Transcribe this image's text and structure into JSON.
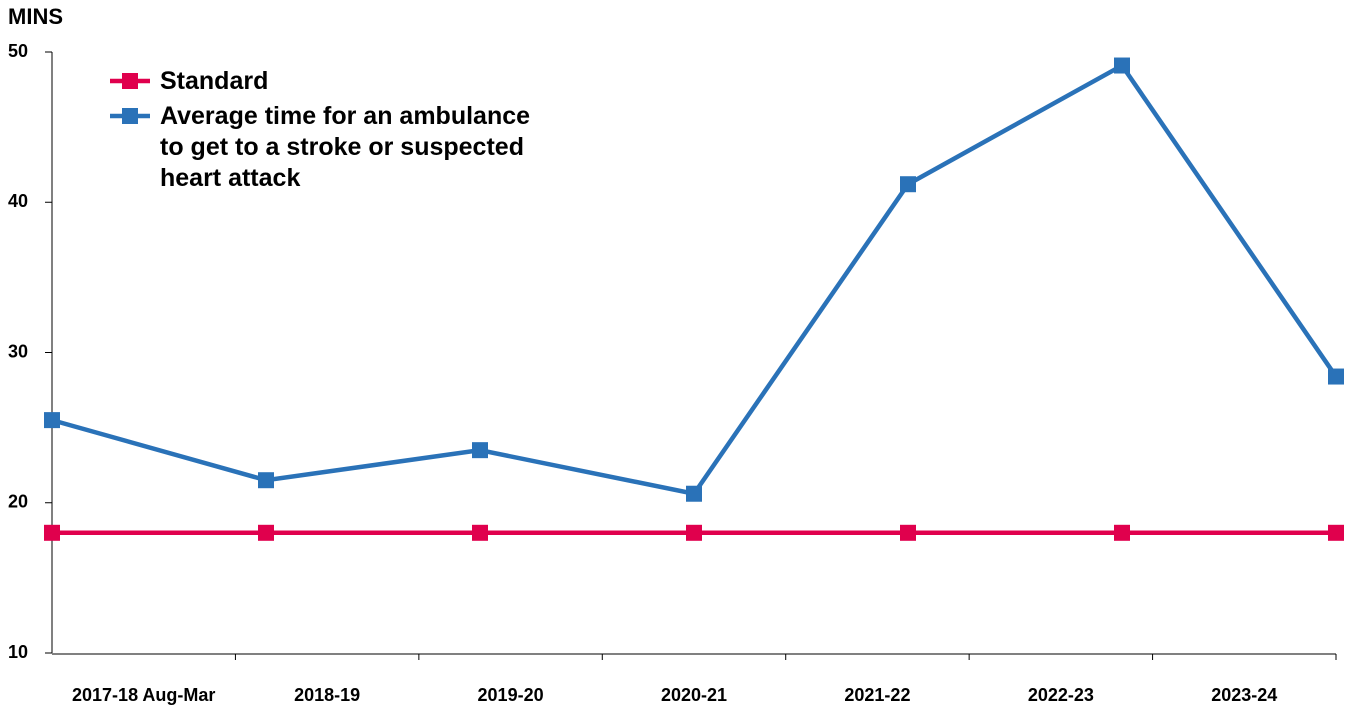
{
  "chart_data": {
    "type": "line",
    "y_label": "MINS",
    "categories": [
      "2017-18 Aug-Mar",
      "2018-19",
      "2019-20",
      "2020-21",
      "2021-22",
      "2022-23",
      "2023-24"
    ],
    "series": [
      {
        "name": "Standard",
        "color": "#e0004d",
        "values": [
          18,
          18,
          18,
          18,
          18,
          18,
          18
        ]
      },
      {
        "name": "Average time for an ambulance to get to a stroke or suspected heart attack",
        "color": "#2a72b8",
        "values": [
          25.5,
          21.5,
          23.5,
          20.6,
          41.2,
          49.1,
          28.4
        ]
      }
    ],
    "ylim": [
      10,
      50
    ],
    "yticks": [
      10,
      20,
      30,
      40,
      50
    ],
    "legend": "upper left"
  }
}
